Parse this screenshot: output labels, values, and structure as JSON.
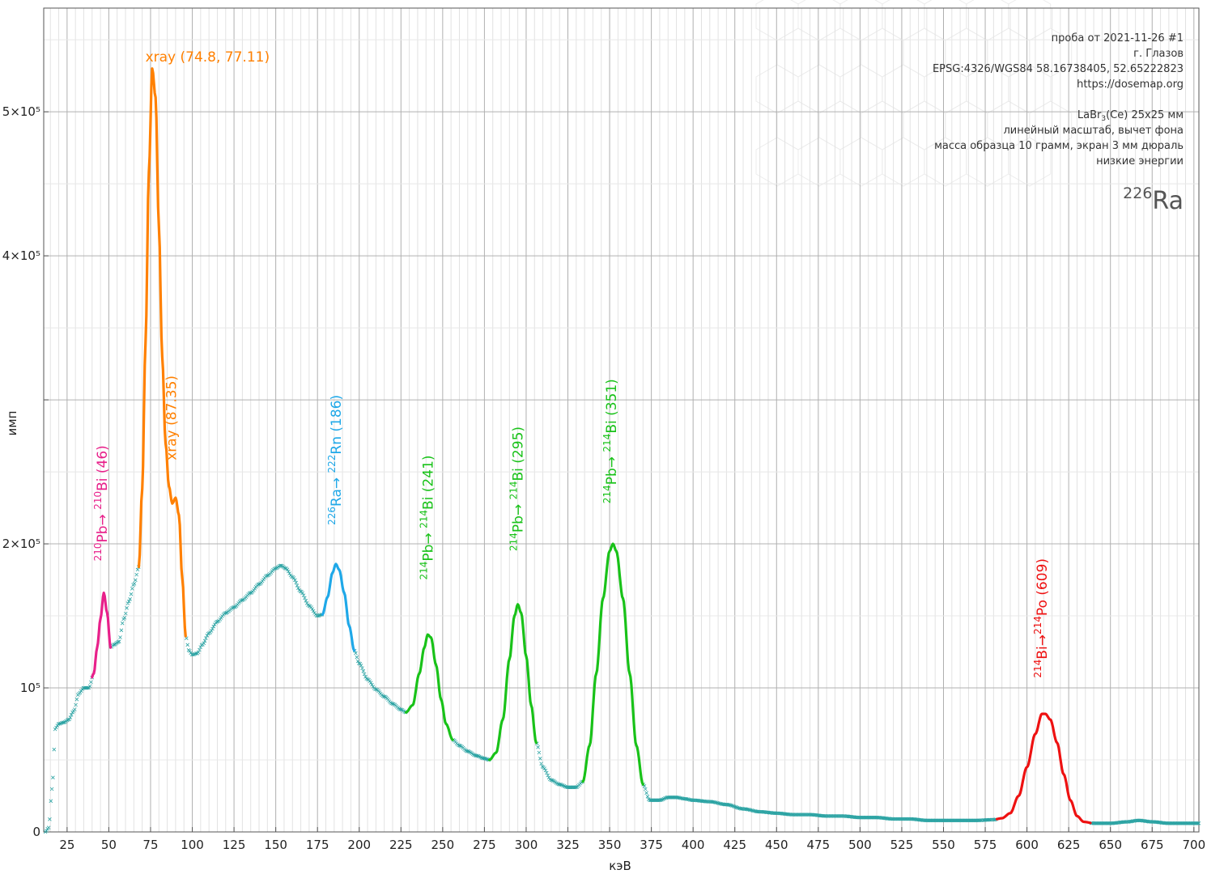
{
  "chart_data": {
    "type": "line",
    "xlabel": "кэВ",
    "ylabel": "имп",
    "xlim": [
      11,
      703
    ],
    "ylim": [
      0,
      572000
    ],
    "x_ticks": [
      25,
      50,
      75,
      100,
      125,
      150,
      175,
      200,
      225,
      250,
      275,
      300,
      325,
      350,
      375,
      400,
      425,
      450,
      475,
      500,
      525,
      550,
      575,
      600,
      625,
      650,
      675,
      700
    ],
    "y_ticks": [
      {
        "value": 0,
        "label": "0"
      },
      {
        "value": 100000,
        "label": "10⁵"
      },
      {
        "value": 200000,
        "label": "2×10⁵"
      },
      {
        "value": 300000,
        "label": ""
      },
      {
        "value": 400000,
        "label": "4×10⁵"
      },
      {
        "value": 500000,
        "label": "5×10⁵"
      }
    ],
    "grid": true,
    "colors": {
      "background_marker": "#2ba3a3",
      "pb210": "#e8208a",
      "xray": "#ff8000",
      "ra226": "#1fa8e8",
      "pb214": "#19c219",
      "bi214": "#ee1111"
    },
    "spectrum": [
      [
        12,
        0
      ],
      [
        14,
        3000
      ],
      [
        16,
        30000
      ],
      [
        18,
        72000
      ],
      [
        20,
        75000
      ],
      [
        23,
        76000
      ],
      [
        26,
        78000
      ],
      [
        29,
        84000
      ],
      [
        32,
        96000
      ],
      [
        35,
        100000
      ],
      [
        38,
        100000
      ],
      [
        41,
        110000
      ],
      [
        43,
        128000
      ],
      [
        45,
        148000
      ],
      [
        47,
        166000
      ],
      [
        49,
        152000
      ],
      [
        51,
        128000
      ],
      [
        53,
        130000
      ],
      [
        56,
        132000
      ],
      [
        59,
        148000
      ],
      [
        62,
        160000
      ],
      [
        65,
        172000
      ],
      [
        68,
        184000
      ],
      [
        70,
        238000
      ],
      [
        72,
        340000
      ],
      [
        74,
        458000
      ],
      [
        76,
        530000
      ],
      [
        78,
        510000
      ],
      [
        80,
        420000
      ],
      [
        82,
        330000
      ],
      [
        84,
        270000
      ],
      [
        86,
        240000
      ],
      [
        88,
        228000
      ],
      [
        90,
        232000
      ],
      [
        92,
        220000
      ],
      [
        94,
        176000
      ],
      [
        96,
        136000
      ],
      [
        98,
        126000
      ],
      [
        100,
        123000
      ],
      [
        103,
        124000
      ],
      [
        106,
        130000
      ],
      [
        110,
        138000
      ],
      [
        115,
        146000
      ],
      [
        120,
        152000
      ],
      [
        125,
        156000
      ],
      [
        130,
        161000
      ],
      [
        135,
        166000
      ],
      [
        140,
        172000
      ],
      [
        145,
        178000
      ],
      [
        150,
        183000
      ],
      [
        153,
        185000
      ],
      [
        156,
        183000
      ],
      [
        160,
        177000
      ],
      [
        165,
        167000
      ],
      [
        170,
        157000
      ],
      [
        175,
        150000
      ],
      [
        178,
        151000
      ],
      [
        181,
        163000
      ],
      [
        184,
        180000
      ],
      [
        186,
        186000
      ],
      [
        188,
        182000
      ],
      [
        191,
        166000
      ],
      [
        194,
        143000
      ],
      [
        197,
        126000
      ],
      [
        200,
        117000
      ],
      [
        205,
        106000
      ],
      [
        210,
        99000
      ],
      [
        215,
        94000
      ],
      [
        220,
        89000
      ],
      [
        225,
        85000
      ],
      [
        228,
        83000
      ],
      [
        232,
        88000
      ],
      [
        236,
        110000
      ],
      [
        239,
        128000
      ],
      [
        241,
        137000
      ],
      [
        243,
        135000
      ],
      [
        246,
        116000
      ],
      [
        249,
        92000
      ],
      [
        252,
        75000
      ],
      [
        256,
        64000
      ],
      [
        260,
        60000
      ],
      [
        265,
        56000
      ],
      [
        270,
        53000
      ],
      [
        275,
        51000
      ],
      [
        278,
        50000
      ],
      [
        282,
        55000
      ],
      [
        286,
        78000
      ],
      [
        290,
        120000
      ],
      [
        293,
        150000
      ],
      [
        295,
        158000
      ],
      [
        297,
        152000
      ],
      [
        300,
        122000
      ],
      [
        303,
        88000
      ],
      [
        306,
        62000
      ],
      [
        310,
        45000
      ],
      [
        315,
        36000
      ],
      [
        320,
        33000
      ],
      [
        325,
        31000
      ],
      [
        330,
        31000
      ],
      [
        334,
        35000
      ],
      [
        338,
        60000
      ],
      [
        342,
        110000
      ],
      [
        346,
        162000
      ],
      [
        350,
        195000
      ],
      [
        352,
        200000
      ],
      [
        354,
        195000
      ],
      [
        358,
        162000
      ],
      [
        362,
        110000
      ],
      [
        366,
        60000
      ],
      [
        370,
        33000
      ],
      [
        374,
        22000
      ],
      [
        380,
        22000
      ],
      [
        385,
        24000
      ],
      [
        390,
        24000
      ],
      [
        395,
        23000
      ],
      [
        400,
        22000
      ],
      [
        410,
        21000
      ],
      [
        420,
        19000
      ],
      [
        430,
        16000
      ],
      [
        440,
        14000
      ],
      [
        450,
        13000
      ],
      [
        460,
        12000
      ],
      [
        470,
        12000
      ],
      [
        480,
        11000
      ],
      [
        490,
        11000
      ],
      [
        500,
        10000
      ],
      [
        510,
        10000
      ],
      [
        520,
        9000
      ],
      [
        530,
        9000
      ],
      [
        540,
        8000
      ],
      [
        550,
        8000
      ],
      [
        560,
        8000
      ],
      [
        570,
        8000
      ],
      [
        580,
        8500
      ],
      [
        585,
        9500
      ],
      [
        590,
        13000
      ],
      [
        595,
        25000
      ],
      [
        600,
        45000
      ],
      [
        605,
        68000
      ],
      [
        609,
        82000
      ],
      [
        611,
        82000
      ],
      [
        614,
        78000
      ],
      [
        618,
        62000
      ],
      [
        622,
        40000
      ],
      [
        626,
        22000
      ],
      [
        630,
        11000
      ],
      [
        634,
        7000
      ],
      [
        640,
        6000
      ],
      [
        650,
        6000
      ],
      [
        660,
        7000
      ],
      [
        667,
        8000
      ],
      [
        675,
        7000
      ],
      [
        685,
        6000
      ],
      [
        695,
        6000
      ],
      [
        703,
        6000
      ]
    ],
    "highlights": [
      {
        "from": 40,
        "to": 51,
        "color": "#e8208a"
      },
      {
        "from": 68,
        "to": 96,
        "color": "#ff8000"
      },
      {
        "from": 178,
        "to": 197,
        "color": "#1fa8e8"
      },
      {
        "from": 228,
        "to": 256,
        "color": "#19c219"
      },
      {
        "from": 278,
        "to": 306,
        "color": "#19c219"
      },
      {
        "from": 334,
        "to": 370,
        "color": "#19c219"
      },
      {
        "from": 582,
        "to": 638,
        "color": "#ee1111"
      }
    ],
    "annotations": [
      {
        "name": "annotation-xray-75",
        "rotated": false,
        "x": 74.8,
        "y": 535000,
        "color": "#ff8000",
        "parts": [
          {
            "t": "xray (74.8, 77.11)"
          }
        ]
      },
      {
        "name": "annotation-xray-87",
        "rotated": true,
        "x": 87.35,
        "y": 258000,
        "color": "#ff8000",
        "parts": [
          {
            "t": "xray (87.35)"
          }
        ]
      },
      {
        "name": "annotation-pb210",
        "rotated": true,
        "x": 46,
        "y": 188000,
        "color": "#e8208a",
        "parts": [
          {
            "t": "210",
            "sup": true
          },
          {
            "t": "Pb→ "
          },
          {
            "t": "210",
            "sup": true
          },
          {
            "t": "Bi (46)"
          }
        ]
      },
      {
        "name": "annotation-ra226",
        "rotated": true,
        "x": 186,
        "y": 213000,
        "color": "#1fa8e8",
        "parts": [
          {
            "t": "226",
            "sup": true
          },
          {
            "t": "Ra→ "
          },
          {
            "t": "222",
            "sup": true
          },
          {
            "t": "Rn (186)"
          }
        ]
      },
      {
        "name": "annotation-pb214-241",
        "rotated": true,
        "x": 241,
        "y": 175000,
        "color": "#19c219",
        "parts": [
          {
            "t": "214",
            "sup": true
          },
          {
            "t": "Pb→ "
          },
          {
            "t": "214",
            "sup": true
          },
          {
            "t": "Bi (241)"
          }
        ]
      },
      {
        "name": "annotation-pb214-295",
        "rotated": true,
        "x": 295,
        "y": 195000,
        "color": "#19c219",
        "parts": [
          {
            "t": "214",
            "sup": true
          },
          {
            "t": "Pb→ "
          },
          {
            "t": "214",
            "sup": true
          },
          {
            "t": "Bi (295)"
          }
        ]
      },
      {
        "name": "annotation-pb214-351",
        "rotated": true,
        "x": 351,
        "y": 228000,
        "color": "#19c219",
        "parts": [
          {
            "t": "214",
            "sup": true
          },
          {
            "t": "Pb→ "
          },
          {
            "t": "214",
            "sup": true
          },
          {
            "t": "Bi (351)"
          }
        ]
      },
      {
        "name": "annotation-bi214",
        "rotated": true,
        "x": 609,
        "y": 107000,
        "color": "#ee1111",
        "parts": [
          {
            "t": "214",
            "sup": true
          },
          {
            "t": "Bi→"
          },
          {
            "t": "214",
            "sup": true
          },
          {
            "t": "Po (609)"
          }
        ]
      }
    ]
  },
  "info": {
    "sample": "проба от 2021-11-26 #1",
    "city": "г. Глазов",
    "coords": "EPSG:4326/WGS84  58.16738405, 52.65222823",
    "site": "https://dosemap.org",
    "detector_prefix": "LaBr",
    "detector_sub": "3",
    "detector_suffix": "(Ce) 25x25 мм",
    "scale": "линейный масштаб, вычет фона",
    "mass": "масса образца 10 грамм, экран 3 мм дюраль",
    "range": "низкие энергии",
    "isotope_mass": "226",
    "isotope_symbol": "Ra"
  }
}
